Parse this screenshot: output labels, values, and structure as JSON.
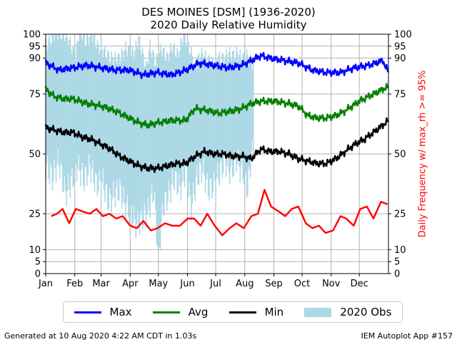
{
  "title_line1": "DES MOINES [DSM] (1936-2020)",
  "title_line2": "2020 Daily Relative Humidity",
  "footer_left": "Generated at 10 Aug 2020 4:22 AM CDT in 1.03s",
  "footer_right": "IEM Autoplot App #157",
  "colors": {
    "max": "#0000ff",
    "avg": "#008000",
    "min": "#000000",
    "obs": "#add8e6",
    "freq": "#ff0000",
    "grid": "#b0b0b0"
  },
  "legend": {
    "max": "Max",
    "avg": "Avg",
    "min": "Min",
    "obs": "2020 Obs"
  },
  "chart_data": {
    "type": "line",
    "title": "DES MOINES [DSM] (1936-2020) 2020 Daily Relative Humidity",
    "xlabel": "",
    "ylabel": "",
    "ylabel_right": "Daily Frequency w/ max_rh >= 95%",
    "xlim": [
      1,
      366
    ],
    "ylim": [
      0,
      100
    ],
    "grid": true,
    "legend_position": "bottom",
    "x_ticks": [
      {
        "day": 1,
        "label": "Jan"
      },
      {
        "day": 32,
        "label": "Feb"
      },
      {
        "day": 60,
        "label": "Mar"
      },
      {
        "day": 91,
        "label": "Apr"
      },
      {
        "day": 121,
        "label": "May"
      },
      {
        "day": 152,
        "label": "Jun"
      },
      {
        "day": 182,
        "label": "Jul"
      },
      {
        "day": 213,
        "label": "Aug"
      },
      {
        "day": 244,
        "label": "Sep"
      },
      {
        "day": 274,
        "label": "Oct"
      },
      {
        "day": 305,
        "label": "Nov"
      },
      {
        "day": 335,
        "label": "Dec"
      }
    ],
    "y_ticks_left": [
      0,
      5,
      10,
      25,
      50,
      75,
      90,
      95,
      100
    ],
    "y_ticks_right": [
      0,
      5,
      10,
      25,
      50,
      75,
      90,
      95,
      100
    ],
    "series": [
      {
        "name": "Max",
        "x": [
          1,
          15,
          30,
          45,
          60,
          75,
          90,
          105,
          120,
          135,
          150,
          165,
          180,
          195,
          210,
          220,
          230,
          240,
          255,
          270,
          285,
          300,
          315,
          330,
          345,
          360,
          366
        ],
        "y": [
          88,
          85,
          86,
          87,
          86,
          85,
          85,
          83,
          84,
          83,
          85,
          88,
          87,
          86,
          87,
          89,
          91,
          90,
          89,
          88,
          85,
          84,
          84,
          86,
          87,
          89,
          84
        ]
      },
      {
        "name": "Avg",
        "x": [
          1,
          10,
          20,
          30,
          45,
          60,
          75,
          90,
          100,
          110,
          120,
          135,
          150,
          160,
          175,
          185,
          200,
          210,
          220,
          230,
          245,
          260,
          270,
          280,
          290,
          300,
          310,
          320,
          335,
          350,
          360,
          366
        ],
        "y": [
          77,
          74,
          73,
          73,
          71,
          70,
          68,
          65,
          63,
          62,
          63,
          64,
          64,
          69,
          68,
          67,
          68,
          69,
          71,
          72,
          72,
          71,
          70,
          66,
          65,
          65,
          66,
          68,
          72,
          75,
          77,
          78
        ]
      },
      {
        "name": "Min",
        "x": [
          1,
          10,
          20,
          30,
          40,
          50,
          60,
          70,
          80,
          90,
          100,
          110,
          120,
          130,
          140,
          150,
          160,
          170,
          180,
          190,
          200,
          210,
          220,
          230,
          240,
          250,
          260,
          270,
          280,
          290,
          300,
          310,
          320,
          330,
          340,
          350,
          360,
          366
        ],
        "y": [
          61,
          60,
          59,
          59,
          57,
          56,
          54,
          52,
          49,
          47,
          45,
          44,
          44,
          45,
          46,
          46,
          49,
          51,
          50,
          50,
          49,
          49,
          48,
          52,
          51,
          51,
          50,
          48,
          47,
          46,
          46,
          48,
          51,
          54,
          56,
          59,
          62,
          64
        ]
      },
      {
        "name": "Daily Frequency w/ max_rh >= 95%",
        "axis": "right",
        "x": [
          7,
          13,
          19,
          26,
          33,
          40,
          48,
          55,
          62,
          69,
          76,
          83,
          91,
          98,
          105,
          113,
          120,
          128,
          136,
          144,
          152,
          159,
          166,
          173,
          181,
          189,
          197,
          204,
          212,
          220,
          227,
          234,
          241,
          249,
          256,
          263,
          270,
          278,
          285,
          292,
          299,
          307,
          315,
          321,
          329,
          336,
          343,
          350,
          358,
          365
        ],
        "y": [
          24,
          25,
          27,
          21,
          27,
          26,
          25,
          27,
          24,
          25,
          23,
          24,
          20,
          19,
          22,
          18,
          19,
          21,
          20,
          20,
          23,
          23,
          20,
          25,
          20,
          16,
          19,
          21,
          19,
          24,
          25,
          35,
          28,
          26,
          24,
          27,
          28,
          21,
          19,
          20,
          17,
          18,
          24,
          23,
          20,
          27,
          28,
          23,
          30,
          29
        ]
      }
    ],
    "obs_2020": {
      "name": "2020 Obs",
      "type": "bar",
      "day_start": 1,
      "day_end": 222,
      "high_days": [
        [
          1,
          95
        ],
        [
          10,
          100
        ],
        [
          20,
          100
        ],
        [
          25,
          98
        ],
        [
          33,
          90
        ],
        [
          36,
          100
        ],
        [
          40,
          100
        ],
        [
          44,
          97
        ],
        [
          50,
          100
        ],
        [
          56,
          95
        ],
        [
          63,
          93
        ],
        [
          70,
          90
        ],
        [
          80,
          90
        ],
        [
          86,
          94
        ],
        [
          95,
          92
        ],
        [
          100,
          98
        ],
        [
          108,
          86
        ],
        [
          112,
          95
        ],
        [
          118,
          88
        ],
        [
          124,
          94
        ],
        [
          130,
          90
        ],
        [
          136,
          95
        ],
        [
          142,
          91
        ],
        [
          148,
          100
        ],
        [
          152,
          96
        ],
        [
          156,
          92
        ],
        [
          160,
          86
        ],
        [
          166,
          92
        ],
        [
          172,
          90
        ],
        [
          178,
          88
        ],
        [
          184,
          90
        ],
        [
          190,
          90
        ],
        [
          196,
          92
        ],
        [
          200,
          91
        ],
        [
          205,
          92
        ],
        [
          210,
          90
        ],
        [
          215,
          91
        ],
        [
          220,
          88
        ]
      ],
      "low_days": [
        [
          1,
          45
        ],
        [
          8,
          40
        ],
        [
          15,
          47
        ],
        [
          22,
          33
        ],
        [
          28,
          38
        ],
        [
          35,
          45
        ],
        [
          42,
          39
        ],
        [
          48,
          45
        ],
        [
          55,
          37
        ],
        [
          62,
          38
        ],
        [
          68,
          30
        ],
        [
          74,
          33
        ],
        [
          80,
          35
        ],
        [
          85,
          29
        ],
        [
          92,
          25
        ],
        [
          98,
          20
        ],
        [
          104,
          23
        ],
        [
          110,
          26
        ],
        [
          116,
          35
        ],
        [
          121,
          7
        ],
        [
          126,
          28
        ],
        [
          132,
          33
        ],
        [
          138,
          40
        ],
        [
          144,
          35
        ],
        [
          150,
          43
        ],
        [
          156,
          28
        ],
        [
          162,
          40
        ],
        [
          168,
          44
        ],
        [
          174,
          35
        ],
        [
          180,
          37
        ],
        [
          186,
          42
        ],
        [
          192,
          47
        ],
        [
          198,
          42
        ],
        [
          204,
          48
        ],
        [
          208,
          44
        ],
        [
          212,
          42
        ],
        [
          216,
          35
        ],
        [
          220,
          50
        ]
      ]
    }
  }
}
